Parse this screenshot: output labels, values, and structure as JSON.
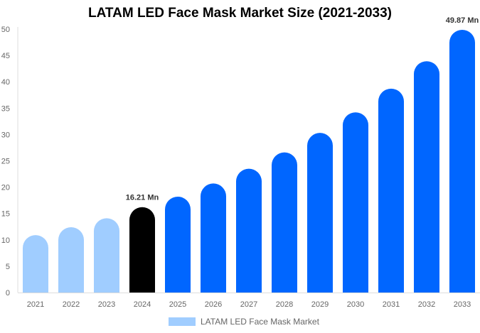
{
  "chart_data": {
    "type": "bar",
    "title": "LATAM LED Face Mask Market Size (2021-2033)",
    "categories": [
      "2021",
      "2022",
      "2023",
      "2024",
      "2025",
      "2026",
      "2027",
      "2028",
      "2029",
      "2030",
      "2031",
      "2032",
      "2033"
    ],
    "series": [
      {
        "name": "LATAM LED Face Mask Market",
        "values": [
          10.9,
          12.4,
          14.1,
          16.21,
          18.2,
          20.7,
          23.5,
          26.6,
          30.3,
          34.2,
          38.7,
          43.9,
          49.87
        ]
      }
    ],
    "data_labels": [
      {
        "category": "2024",
        "text": "16.21 Mn"
      },
      {
        "category": "2033",
        "text": "49.87 Mn"
      }
    ],
    "ylim": [
      0,
      50
    ],
    "yticks": [
      0,
      5,
      10,
      15,
      20,
      25,
      30,
      35,
      40,
      45,
      50
    ],
    "xlabel": "",
    "ylabel": "",
    "grid": false,
    "legend": "bottom",
    "colors": {
      "historical": "#a0cdff",
      "current": "#000000",
      "forecast": "#0066ff"
    },
    "color_by_category": [
      "historical",
      "historical",
      "historical",
      "current",
      "forecast",
      "forecast",
      "forecast",
      "forecast",
      "forecast",
      "forecast",
      "forecast",
      "forecast",
      "forecast"
    ]
  }
}
